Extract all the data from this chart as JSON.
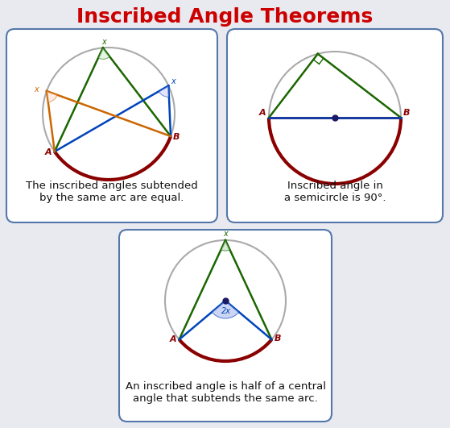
{
  "title": "Inscribed Angle Theorems",
  "title_color": "#cc0000",
  "title_fontsize": 18,
  "bg_color": "#e8eaf0",
  "box_color": "#5577aa",
  "box_bg": "#ffffff",
  "circle_color": "#aaaaaa",
  "arc_color": "#8b0000",
  "green_color": "#1a6600",
  "blue_color": "#0044bb",
  "orange_color": "#cc6600",
  "text1": "The inscribed angles subtended\nby the same arc are equal.",
  "text2": "Inscribed angle in\na semicircle is 90°.",
  "text3": "An inscribed angle is half of a central\nangle that subtends the same arc."
}
